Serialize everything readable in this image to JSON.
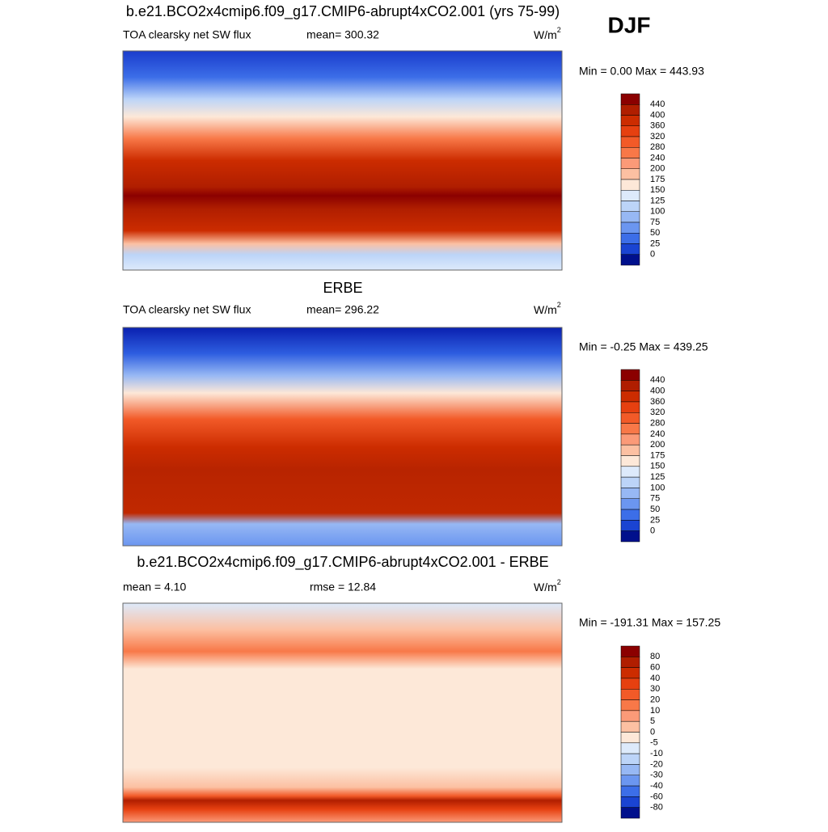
{
  "header": {
    "title": "DJF"
  },
  "panels": [
    {
      "title": "b.e21.BCO2x4cmip6.f09_g17.CMIP6-abrupt4xCO2.001 (yrs 75-99)",
      "left": "TOA clearsky net SW flux",
      "center": "mean= 300.32",
      "units": "W/m",
      "units_sup": "2",
      "minmax": "Min =   0.00 Max = 443.93",
      "colorbar": {
        "labels": [
          "440",
          "400",
          "360",
          "320",
          "280",
          "240",
          "200",
          "175",
          "150",
          "125",
          "100",
          "75",
          "50",
          "25",
          "0"
        ],
        "colors": [
          "#8b0000",
          "#b01e00",
          "#cc2c00",
          "#e64010",
          "#f25a28",
          "#f87848",
          "#fb9a78",
          "#fcc0a2",
          "#fde8d8",
          "#ddeafb",
          "#bcd4f8",
          "#97b8f4",
          "#6b96f0",
          "#3c6ee8",
          "#1a44d2",
          "#00108c"
        ]
      }
    },
    {
      "title": "ERBE",
      "left": "TOA clearsky net SW flux",
      "center": "mean= 296.22",
      "units": "W/m",
      "units_sup": "2",
      "minmax": "Min =  -0.25 Max = 439.25",
      "colorbar": {
        "labels": [
          "440",
          "400",
          "360",
          "320",
          "280",
          "240",
          "200",
          "175",
          "150",
          "125",
          "100",
          "75",
          "50",
          "25",
          "0"
        ],
        "colors": [
          "#8b0000",
          "#b01e00",
          "#cc2c00",
          "#e64010",
          "#f25a28",
          "#f87848",
          "#fb9a78",
          "#fcc0a2",
          "#fde8d8",
          "#ddeafb",
          "#bcd4f8",
          "#97b8f4",
          "#6b96f0",
          "#3c6ee8",
          "#1a44d2",
          "#00108c"
        ]
      }
    },
    {
      "title": "b.e21.BCO2x4cmip6.f09_g17.CMIP6-abrupt4xCO2.001 - ERBE",
      "left": "mean =   4.10",
      "center": "rmse =  12.84",
      "units": "W/m",
      "units_sup": "2",
      "minmax": "Min = -191.31 Max = 157.25",
      "colorbar": {
        "labels": [
          "80",
          "60",
          "40",
          "30",
          "20",
          "10",
          "5",
          "0",
          "-5",
          "-10",
          "-20",
          "-30",
          "-40",
          "-60",
          "-80"
        ],
        "colors": [
          "#8b0000",
          "#b01e00",
          "#cc2c00",
          "#e64010",
          "#f25a28",
          "#f87848",
          "#fb9a78",
          "#fcc0a2",
          "#fde8d8",
          "#ddeafb",
          "#bcd4f8",
          "#97b8f4",
          "#6b96f0",
          "#3c6ee8",
          "#1a44d2",
          "#00108c"
        ]
      }
    }
  ]
}
